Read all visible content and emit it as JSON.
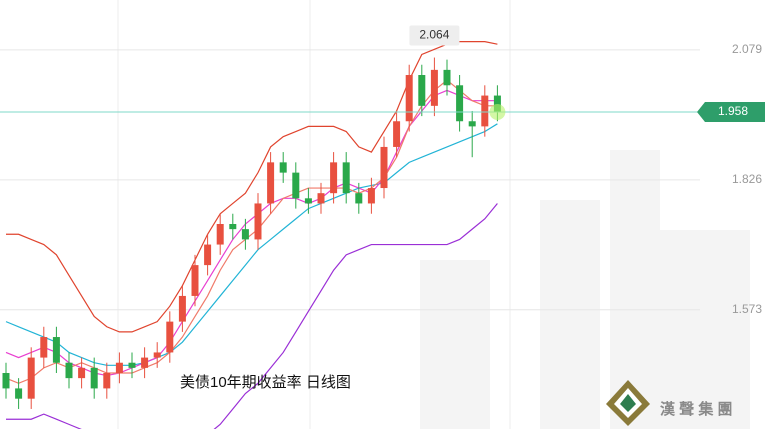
{
  "chart_data": {
    "type": "candlestick",
    "title": "美债10年期收益率 日线图",
    "open": [
      1.45,
      1.42,
      1.4,
      1.48,
      1.52,
      1.47,
      1.44,
      1.46,
      1.42,
      1.45,
      1.47,
      1.46,
      1.48,
      1.49,
      1.55,
      1.6,
      1.66,
      1.7,
      1.74,
      1.73,
      1.71,
      1.78,
      1.86,
      1.84,
      1.79,
      1.78,
      1.8,
      1.86,
      1.8,
      1.78,
      1.81,
      1.89,
      1.94,
      2.03,
      1.97,
      2.04,
      2.01,
      1.94,
      1.93,
      1.99
    ],
    "high": [
      1.47,
      1.44,
      1.5,
      1.54,
      1.54,
      1.49,
      1.48,
      1.48,
      1.47,
      1.49,
      1.49,
      1.5,
      1.51,
      1.57,
      1.62,
      1.68,
      1.72,
      1.76,
      1.76,
      1.75,
      1.8,
      1.88,
      1.88,
      1.86,
      1.81,
      1.82,
      1.88,
      1.88,
      1.82,
      1.83,
      1.91,
      1.96,
      2.05,
      2.05,
      2.064,
      2.06,
      2.03,
      1.96,
      2.01,
      2.01
    ],
    "low": [
      1.4,
      1.38,
      1.38,
      1.46,
      1.45,
      1.42,
      1.42,
      1.4,
      1.4,
      1.43,
      1.44,
      1.44,
      1.46,
      1.47,
      1.53,
      1.58,
      1.64,
      1.68,
      1.71,
      1.69,
      1.69,
      1.76,
      1.82,
      1.77,
      1.76,
      1.76,
      1.78,
      1.78,
      1.76,
      1.76,
      1.79,
      1.87,
      1.92,
      1.95,
      1.95,
      1.99,
      1.92,
      1.87,
      1.91,
      1.94
    ],
    "close": [
      1.42,
      1.4,
      1.48,
      1.52,
      1.47,
      1.44,
      1.46,
      1.42,
      1.45,
      1.47,
      1.46,
      1.48,
      1.49,
      1.55,
      1.6,
      1.66,
      1.7,
      1.74,
      1.73,
      1.71,
      1.78,
      1.86,
      1.84,
      1.79,
      1.78,
      1.8,
      1.86,
      1.8,
      1.78,
      1.81,
      1.89,
      1.94,
      2.03,
      1.97,
      2.04,
      2.01,
      1.94,
      1.93,
      1.99,
      1.958
    ],
    "up_color": "#e8503f",
    "down_color": "#2aa84a",
    "series": [
      {
        "color": "#e0442e",
        "values": [
          1.72,
          1.72,
          1.71,
          1.7,
          1.68,
          1.64,
          1.6,
          1.56,
          1.54,
          1.53,
          1.53,
          1.54,
          1.55,
          1.58,
          1.62,
          1.67,
          1.72,
          1.76,
          1.78,
          1.8,
          1.84,
          1.89,
          1.91,
          1.92,
          1.93,
          1.93,
          1.93,
          1.92,
          1.89,
          1.88,
          1.92,
          1.96,
          2.02,
          2.07,
          2.08,
          2.09,
          2.095,
          2.095,
          2.095,
          2.09
        ]
      },
      {
        "color": "#9a2fd6",
        "values": [
          1.36,
          1.36,
          1.36,
          1.37,
          1.36,
          1.35,
          1.34,
          1.33,
          1.33,
          1.33,
          1.33,
          1.33,
          1.33,
          1.32,
          1.32,
          1.32,
          1.33,
          1.35,
          1.38,
          1.41,
          1.43,
          1.46,
          1.49,
          1.53,
          1.57,
          1.61,
          1.65,
          1.68,
          1.69,
          1.7,
          1.7,
          1.7,
          1.7,
          1.7,
          1.7,
          1.7,
          1.71,
          1.73,
          1.75,
          1.78
        ]
      },
      {
        "color": "#22b4d6",
        "values": [
          1.55,
          1.54,
          1.53,
          1.52,
          1.51,
          1.49,
          1.48,
          1.47,
          1.465,
          1.465,
          1.465,
          1.47,
          1.48,
          1.49,
          1.51,
          1.54,
          1.57,
          1.6,
          1.63,
          1.66,
          1.69,
          1.71,
          1.73,
          1.75,
          1.77,
          1.78,
          1.79,
          1.8,
          1.81,
          1.815,
          1.82,
          1.84,
          1.86,
          1.87,
          1.88,
          1.89,
          1.9,
          1.91,
          1.92,
          1.935
        ]
      },
      {
        "color": "#e83fd0",
        "values": [
          1.49,
          1.48,
          1.49,
          1.5,
          1.49,
          1.47,
          1.46,
          1.45,
          1.445,
          1.45,
          1.46,
          1.47,
          1.48,
          1.51,
          1.55,
          1.59,
          1.63,
          1.67,
          1.71,
          1.74,
          1.76,
          1.78,
          1.79,
          1.79,
          1.78,
          1.79,
          1.81,
          1.82,
          1.81,
          1.8,
          1.83,
          1.88,
          1.93,
          1.96,
          1.99,
          2.0,
          1.99,
          1.98,
          1.98,
          1.98
        ]
      },
      {
        "color": "#f07a6a",
        "values": [
          1.44,
          1.43,
          1.44,
          1.46,
          1.47,
          1.46,
          1.47,
          1.46,
          1.45,
          1.45,
          1.45,
          1.46,
          1.47,
          1.49,
          1.52,
          1.56,
          1.6,
          1.65,
          1.69,
          1.71,
          1.73,
          1.76,
          1.79,
          1.8,
          1.81,
          1.81,
          1.81,
          1.81,
          1.8,
          1.81,
          1.83,
          1.87,
          1.93,
          1.97,
          2.0,
          2.02,
          2.0,
          1.98,
          1.97,
          1.97
        ]
      }
    ],
    "ylim": [
      1.341,
      2.176
    ],
    "yticks": [
      1.573,
      1.826,
      2.079
    ],
    "grid": true,
    "last_price": 1.958,
    "last_price_color": "#2e9e6a",
    "max_label": 2.064
  },
  "logo": "漢 聲 集 團"
}
